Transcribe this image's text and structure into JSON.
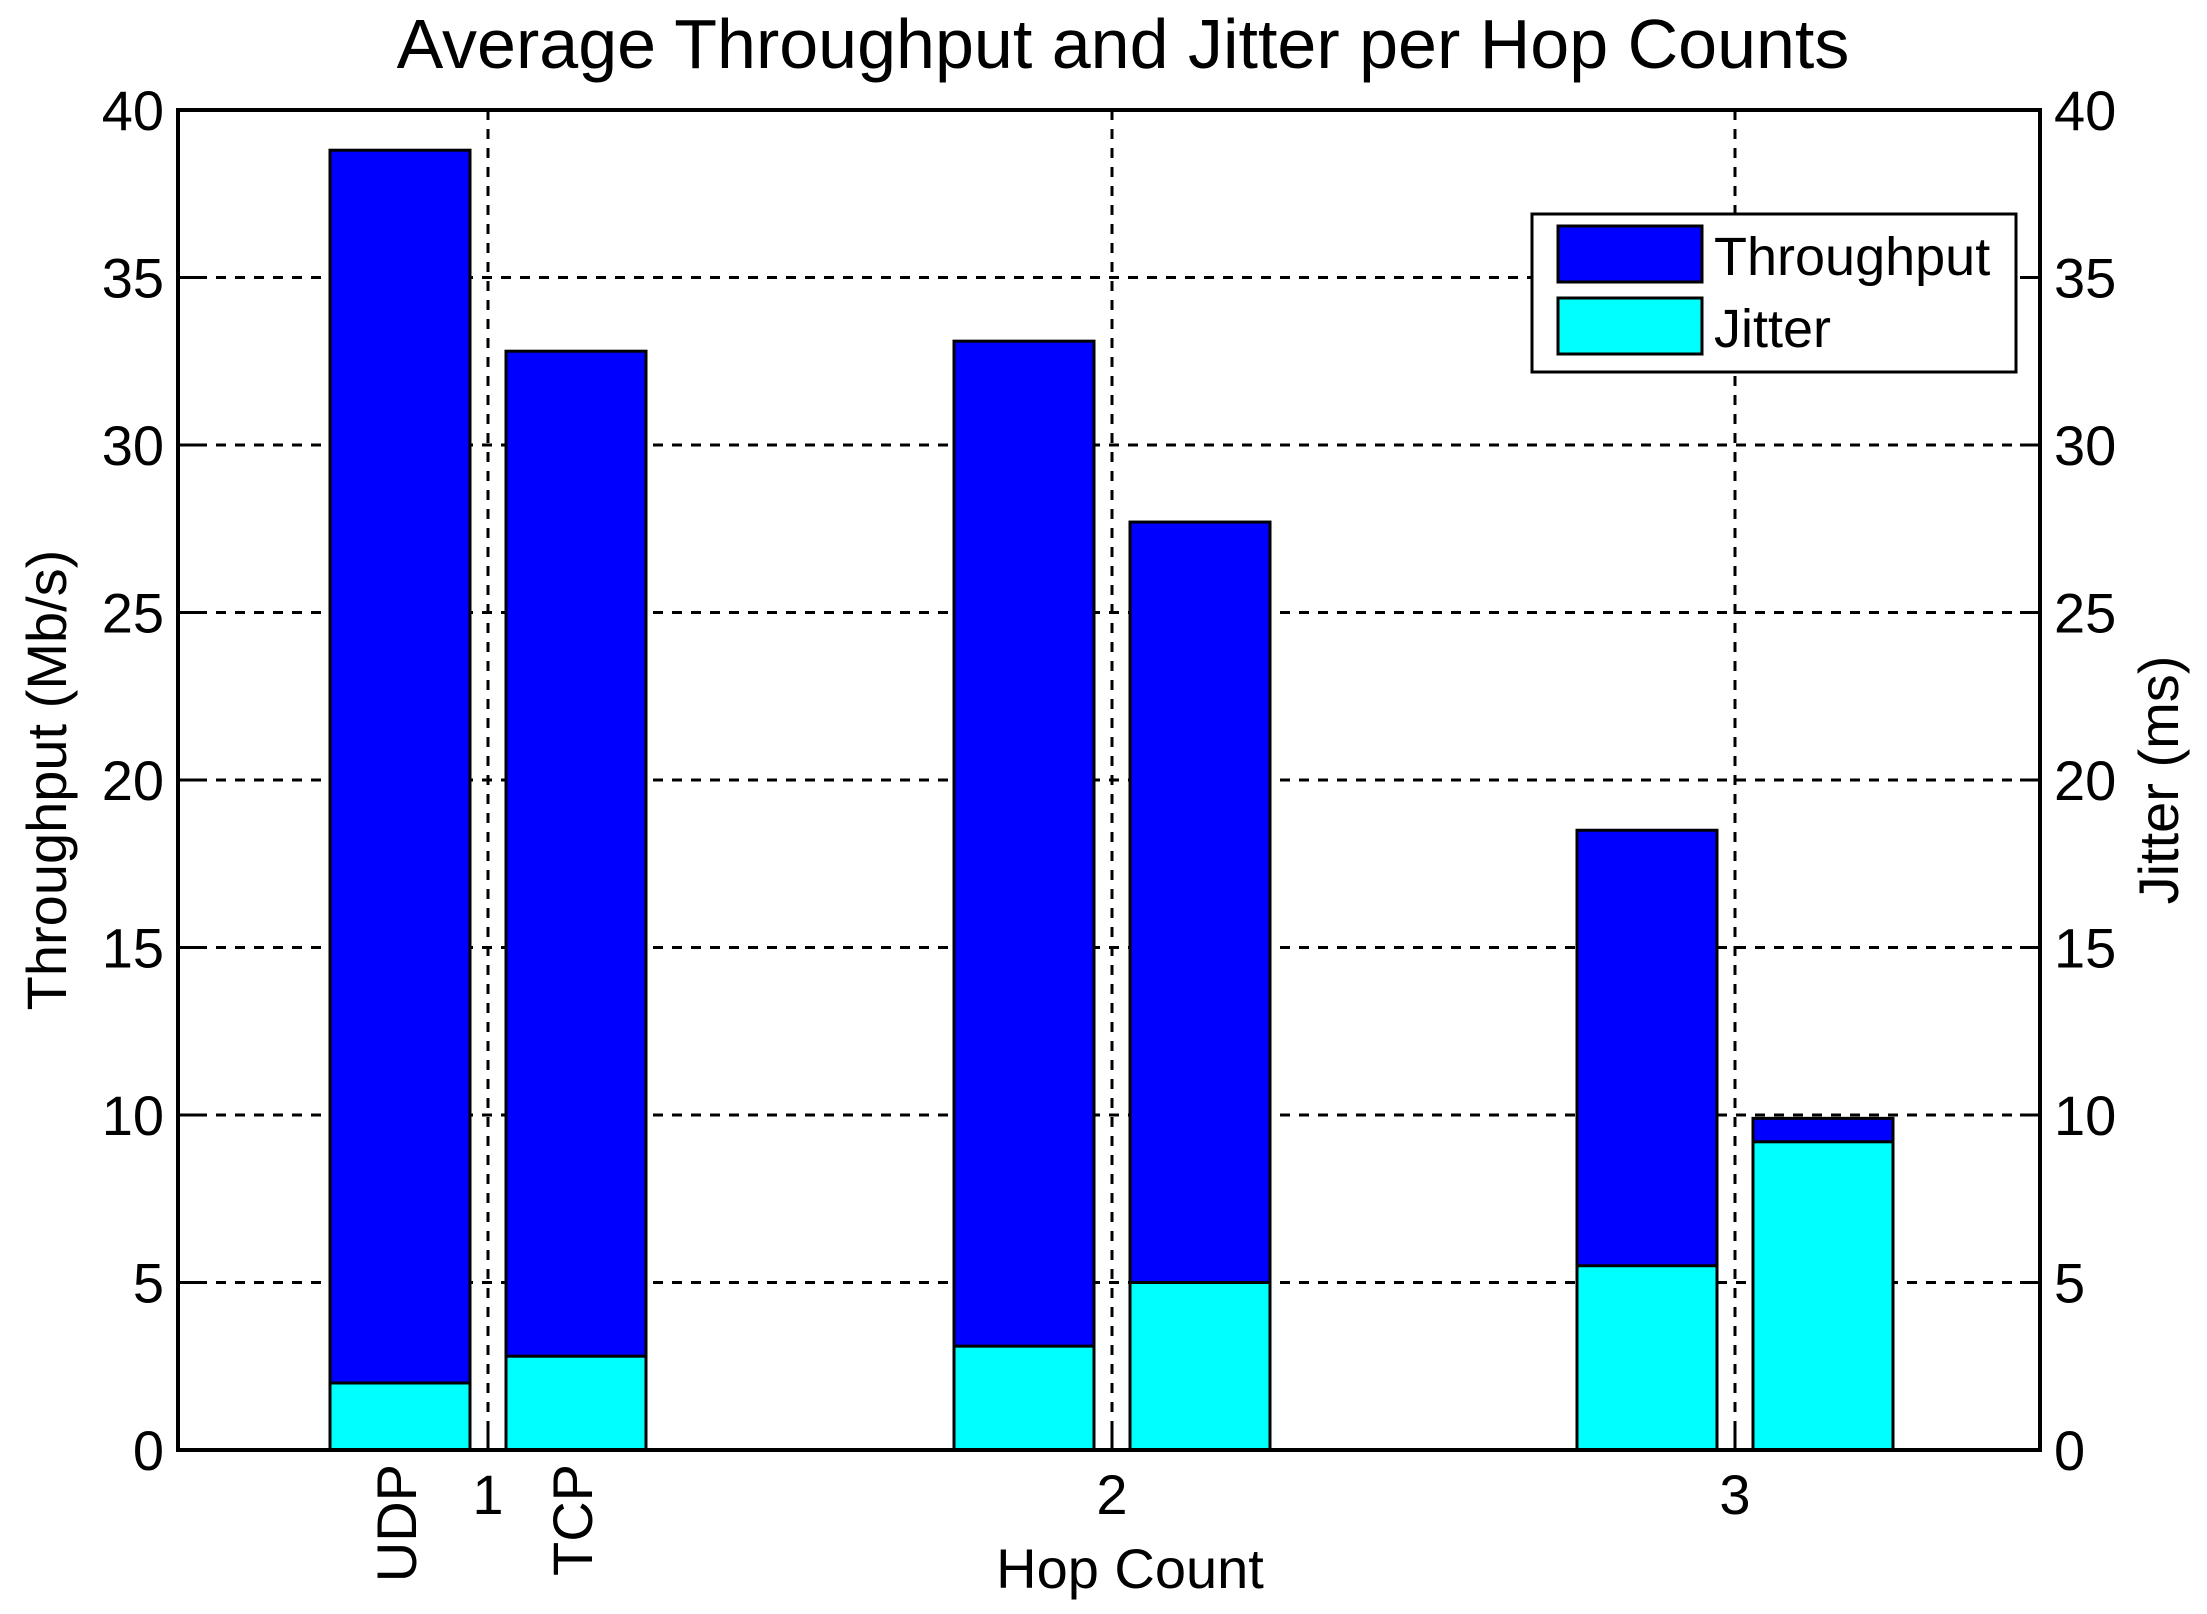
{
  "chart_data": {
    "type": "bar",
    "stacked": true,
    "title": "Average Throughput and Jitter per Hop Counts",
    "xlabel": "Hop Count",
    "ylabel_left": "Throughput (Mb/s)",
    "ylabel_right": "Jitter (ms)",
    "ylim_left": [
      0,
      40
    ],
    "ylim_right": [
      0,
      40
    ],
    "yticks": [
      "0",
      "5",
      "10",
      "15",
      "20",
      "25",
      "30",
      "35",
      "40"
    ],
    "categories": [
      "1",
      "2",
      "3"
    ],
    "protocol_labels": [
      "UDP",
      "TCP"
    ],
    "grid": true,
    "legend_position": "top-right",
    "series": [
      {
        "name": "Throughput",
        "color": "#0000ff",
        "values": [
          [
            38.8,
            32.8
          ],
          [
            33.1,
            27.7
          ],
          [
            18.5,
            9.9
          ]
        ]
      },
      {
        "name": "Jitter",
        "color": "#00ffff",
        "values": [
          [
            2.0,
            2.8
          ],
          [
            3.1,
            5.0
          ],
          [
            5.5,
            9.2
          ]
        ]
      }
    ]
  }
}
